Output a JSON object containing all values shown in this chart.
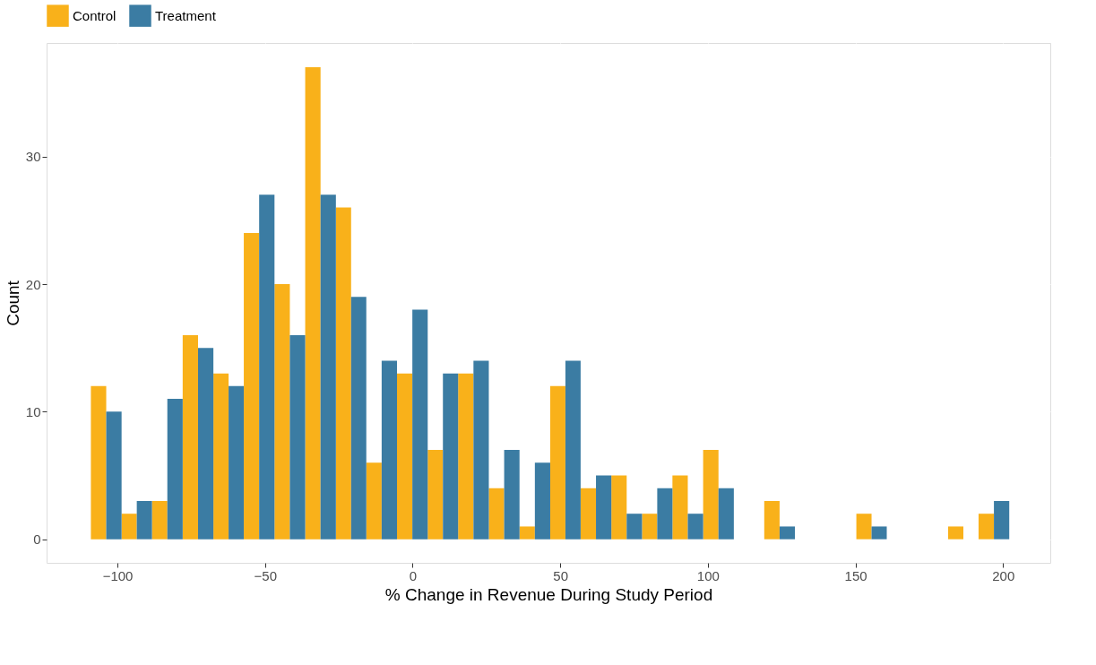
{
  "chart_data": {
    "type": "histogram",
    "xlabel": "% Change in Revenue During Study Period",
    "ylabel": "Count",
    "bins": [
      -109,
      -98.6,
      -88.3,
      -77.9,
      -67.5,
      -57.2,
      -46.8,
      -36.4,
      -26.0,
      -15.7,
      -5.3,
      5.1,
      15.4,
      25.8,
      36.2,
      46.6,
      56.9,
      67.3,
      77.7,
      88.0,
      98.4,
      108.8,
      119.1,
      129.5,
      139.9,
      150.3,
      160.6,
      171.0,
      181.4,
      191.7,
      202.1
    ],
    "series": [
      {
        "name": "Control",
        "color": "#f9b11a",
        "values": [
          12,
          2,
          3,
          16,
          13,
          24,
          20,
          37,
          26,
          6,
          13,
          7,
          13,
          4,
          1,
          12,
          4,
          5,
          2,
          5,
          7,
          0,
          3,
          0,
          0,
          2,
          0,
          0,
          1,
          2
        ]
      },
      {
        "name": "Treatment",
        "color": "#3b7ca3",
        "values": [
          10,
          3,
          11,
          15,
          12,
          27,
          16,
          27,
          19,
          14,
          18,
          13,
          14,
          7,
          6,
          14,
          5,
          2,
          4,
          2,
          4,
          0,
          1,
          0,
          0,
          1,
          0,
          0,
          0,
          3
        ]
      }
    ],
    "xlim": [
      -124,
      216
    ],
    "ylim": [
      -1.85,
      38.9
    ],
    "xticks": [
      -100,
      -50,
      0,
      50,
      100,
      150,
      200
    ],
    "yticks": [
      0,
      10,
      20,
      30
    ],
    "grid": true,
    "legend": "top"
  }
}
